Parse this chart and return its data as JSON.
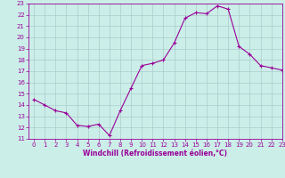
{
  "x": [
    0,
    1,
    2,
    3,
    4,
    5,
    6,
    7,
    8,
    9,
    10,
    11,
    12,
    13,
    14,
    15,
    16,
    17,
    18,
    19,
    20,
    21,
    22,
    23
  ],
  "y": [
    14.5,
    14.0,
    13.5,
    13.3,
    12.2,
    12.1,
    12.3,
    11.3,
    13.5,
    15.5,
    17.5,
    17.7,
    18.0,
    19.5,
    21.7,
    22.2,
    22.1,
    22.8,
    22.5,
    19.2,
    18.5,
    17.5,
    17.3,
    17.1
  ],
  "line_color": "#990099",
  "marker": "+",
  "marker_size": 3,
  "marker_lw": 0.8,
  "line_width": 0.8,
  "bg_color": "#cceee8",
  "grid_color": "#aacccc",
  "xlabel": "Windchill (Refroidissement éolien,°C)",
  "xlabel_color": "#990099",
  "tick_color": "#990099",
  "label_fontsize": 5.0,
  "xlabel_fontsize": 5.5,
  "ylim": [
    11,
    23
  ],
  "xlim": [
    -0.5,
    23
  ],
  "yticks": [
    11,
    12,
    13,
    14,
    15,
    16,
    17,
    18,
    19,
    20,
    21,
    22,
    23
  ],
  "xticks": [
    0,
    1,
    2,
    3,
    4,
    5,
    6,
    7,
    8,
    9,
    10,
    11,
    12,
    13,
    14,
    15,
    16,
    17,
    18,
    19,
    20,
    21,
    22,
    23
  ]
}
